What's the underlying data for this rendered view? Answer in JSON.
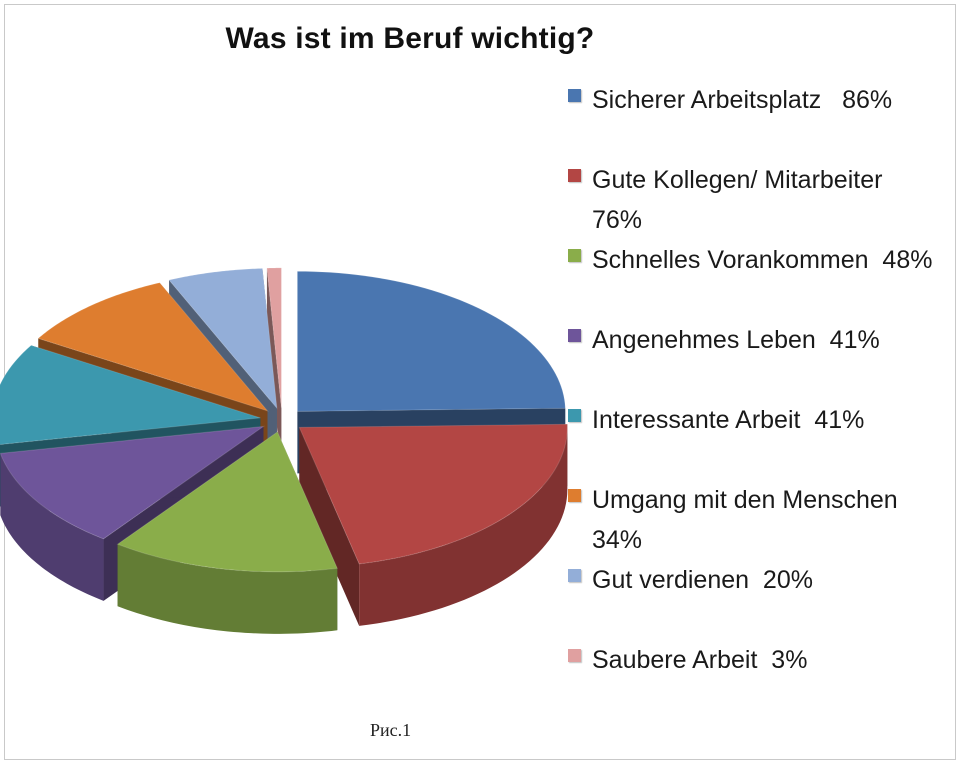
{
  "chart_data": {
    "type": "pie",
    "title": "Was ist im Beruf wichtig?",
    "style": "3d-exploded",
    "legend_position": "right",
    "categories": [
      "Sicherer Arbeitsplatz",
      "Gute Kollegen/ Mitarbeiter",
      "Schnelles Vorankommen",
      "Angenehmes Leben",
      "Interessante Arbeit",
      "Umgang mit den Menschen",
      "Gut verdienen",
      "Saubere Arbeit"
    ],
    "values": [
      86,
      76,
      48,
      41,
      41,
      34,
      20,
      3
    ],
    "legend_labels": [
      "Sicherer Arbeitsplatz   86%",
      "Gute Kollegen/ Mitarbeiter\n76%",
      "Schnelles Vorankommen  48%",
      "Angenehmes Leben  41%",
      "Interessante Arbeit  41%",
      "Umgang mit den Menschen\n34%",
      "Gut verdienen  20%",
      "Saubere Arbeit  3%"
    ],
    "colors": [
      "#4a76b0",
      "#b34644",
      "#8aad4a",
      "#6e559a",
      "#3c98ae",
      "#de7d2f",
      "#93aed8",
      "#e0a0a0"
    ]
  },
  "caption": "Рис.1"
}
